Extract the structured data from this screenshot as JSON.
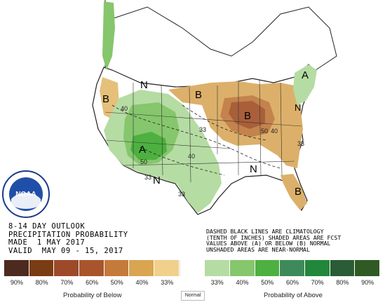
{
  "title_lines": [
    "8-14 DAY OUTLOOK",
    "PRECIPITATION PROBABILITY",
    "MADE  1 MAY 2017",
    "VALID  MAY 09 - 15, 2017"
  ],
  "notes": [
    "DASHED BLACK LINES ARE CLIMATOLOGY",
    "(TENTH OF INCHES) SHADED AREAS ARE FCST",
    "VALUES ABOVE (A) OR BELOW (B) NORMAL",
    "UNSHADED AREAS ARE NEAR-NORMAL"
  ],
  "map_labels": {
    "above": "A",
    "below": "B",
    "normal": "N",
    "contour_40": "40",
    "contour_33": "33",
    "contour_50": "50"
  },
  "logo": {
    "text": "NOAA"
  },
  "legend": {
    "colors": [
      "#4d2a1e",
      "#7a3c12",
      "#9c4a2a",
      "#a8552e",
      "#c47a3a",
      "#d9a550",
      "#f0d08a",
      "#ffffff",
      "#b5dca3",
      "#86c66c",
      "#4db040",
      "#3f8a5a",
      "#22873a",
      "#2a5c35",
      "#2f5a24"
    ],
    "labels": [
      "90%",
      "80%",
      "70%",
      "60%",
      "50%",
      "40%",
      "33%",
      "",
      "33%",
      "40%",
      "50%",
      "60%",
      "70%",
      "80%",
      "90%"
    ],
    "below_caption": "Probability of Below",
    "normal_caption": "Normal",
    "above_caption": "Probability of Above"
  }
}
